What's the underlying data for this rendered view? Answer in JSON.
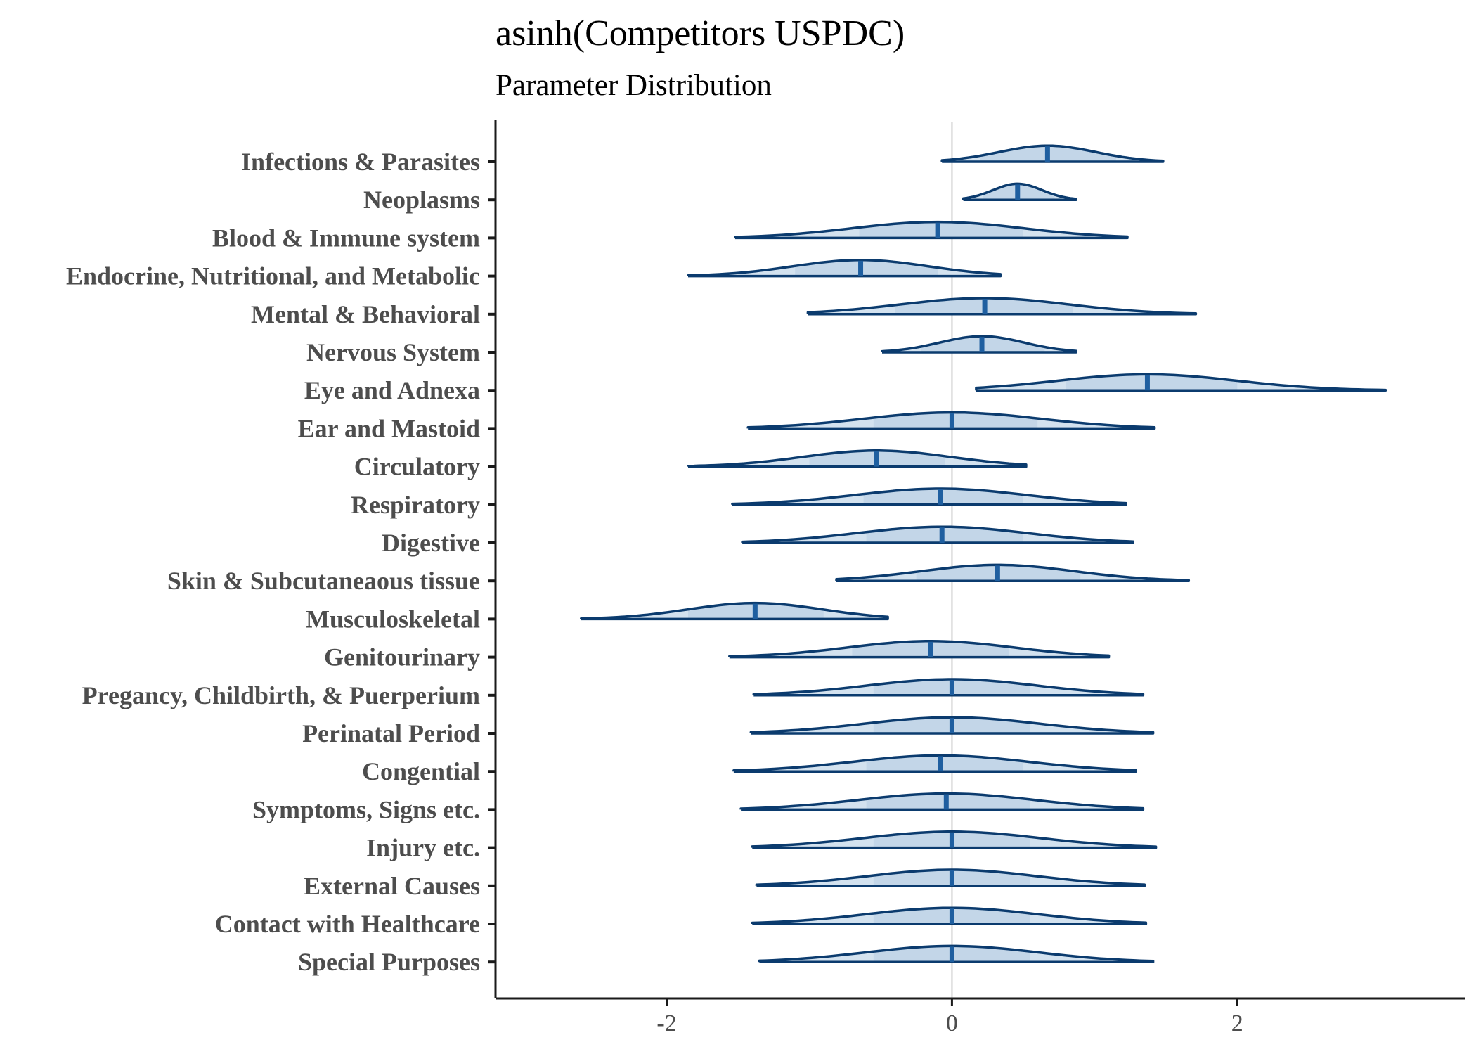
{
  "chart_data": {
    "type": "violin",
    "title": "asinh(Competitors USPDC)",
    "subtitle": "Parameter Distribution",
    "xlabel": "",
    "ylabel": "",
    "xlim": [
      -3.2,
      3.6
    ],
    "xticks": [
      -2,
      0,
      2
    ],
    "xtick_labels": [
      "-2",
      "0",
      "2"
    ],
    "reference_line_x": 0,
    "grid": false,
    "colors": {
      "outline": "#0b3b6e",
      "fill": "#d3e2ef",
      "inner_fill": "#c3d6e8",
      "median": "#1f5fa0",
      "zero_line": "#dcdcdc",
      "axis": "#1a1a1a"
    },
    "series": [
      {
        "label": "Infections & Parasites",
        "min": -0.07,
        "max": 1.48,
        "median": 0.67,
        "peak": 0.67,
        "inner": [
          0.2,
          1.15
        ]
      },
      {
        "label": "Neoplasms",
        "min": 0.08,
        "max": 0.87,
        "median": 0.46,
        "peak": 0.46,
        "inner": [
          0.22,
          0.72
        ]
      },
      {
        "label": "Blood & Immune system",
        "min": -1.52,
        "max": 1.23,
        "median": -0.1,
        "peak": -0.1,
        "inner": [
          -0.65,
          0.5
        ]
      },
      {
        "label": "Endocrine, Nutritional, and Metabolic",
        "min": -1.85,
        "max": 0.34,
        "median": -0.64,
        "peak": -0.64,
        "inner": [
          -1.1,
          -0.1
        ]
      },
      {
        "label": "Mental & Behavioral",
        "min": -1.01,
        "max": 1.71,
        "median": 0.23,
        "peak": 0.23,
        "inner": [
          -0.4,
          0.85
        ]
      },
      {
        "label": "Nervous System",
        "min": -0.49,
        "max": 0.87,
        "median": 0.21,
        "peak": 0.21,
        "inner": [
          -0.22,
          0.65
        ]
      },
      {
        "label": "Eye and Adnexa",
        "min": 0.17,
        "max": 3.04,
        "median": 1.37,
        "peak": 1.37,
        "inner": [
          0.8,
          2.0
        ]
      },
      {
        "label": "Ear and Mastoid",
        "min": -1.43,
        "max": 1.42,
        "median": 0.0,
        "peak": 0.0,
        "inner": [
          -0.55,
          0.6
        ]
      },
      {
        "label": "Circulatory",
        "min": -1.85,
        "max": 0.52,
        "median": -0.53,
        "peak": -0.53,
        "inner": [
          -1.0,
          -0.05
        ]
      },
      {
        "label": "Respiratory",
        "min": -1.54,
        "max": 1.22,
        "median": -0.08,
        "peak": -0.08,
        "inner": [
          -0.62,
          0.5
        ]
      },
      {
        "label": "Digestive",
        "min": -1.47,
        "max": 1.27,
        "median": -0.07,
        "peak": -0.07,
        "inner": [
          -0.6,
          0.5
        ]
      },
      {
        "label": "Skin & Subcutaneaous tissue",
        "min": -0.81,
        "max": 1.66,
        "median": 0.32,
        "peak": 0.32,
        "inner": [
          -0.25,
          0.9
        ]
      },
      {
        "label": "Musculoskeletal",
        "min": -2.6,
        "max": -0.45,
        "median": -1.38,
        "peak": -1.38,
        "inner": [
          -1.85,
          -0.9
        ]
      },
      {
        "label": "Genitourinary",
        "min": -1.56,
        "max": 1.1,
        "median": -0.15,
        "peak": -0.15,
        "inner": [
          -0.7,
          0.4
        ]
      },
      {
        "label": "Pregancy, Childbirth, & Puerperium",
        "min": -1.39,
        "max": 1.34,
        "median": 0.0,
        "peak": 0.0,
        "inner": [
          -0.55,
          0.55
        ]
      },
      {
        "label": "Perinatal Period",
        "min": -1.41,
        "max": 1.41,
        "median": 0.0,
        "peak": 0.0,
        "inner": [
          -0.55,
          0.55
        ]
      },
      {
        "label": "Congential",
        "min": -1.53,
        "max": 1.29,
        "median": -0.08,
        "peak": -0.08,
        "inner": [
          -0.6,
          0.5
        ]
      },
      {
        "label": "Symptoms, Signs etc.",
        "min": -1.48,
        "max": 1.34,
        "median": -0.04,
        "peak": -0.04,
        "inner": [
          -0.6,
          0.55
        ]
      },
      {
        "label": "Injury etc.",
        "min": -1.4,
        "max": 1.43,
        "median": 0.0,
        "peak": 0.0,
        "inner": [
          -0.55,
          0.55
        ]
      },
      {
        "label": "External Causes",
        "min": -1.37,
        "max": 1.35,
        "median": 0.0,
        "peak": 0.0,
        "inner": [
          -0.55,
          0.55
        ]
      },
      {
        "label": "Contact with Healthcare",
        "min": -1.4,
        "max": 1.36,
        "median": 0.0,
        "peak": 0.0,
        "inner": [
          -0.55,
          0.55
        ]
      },
      {
        "label": "Special Purposes",
        "min": -1.35,
        "max": 1.41,
        "median": 0.0,
        "peak": 0.0,
        "inner": [
          -0.55,
          0.55
        ]
      }
    ]
  }
}
